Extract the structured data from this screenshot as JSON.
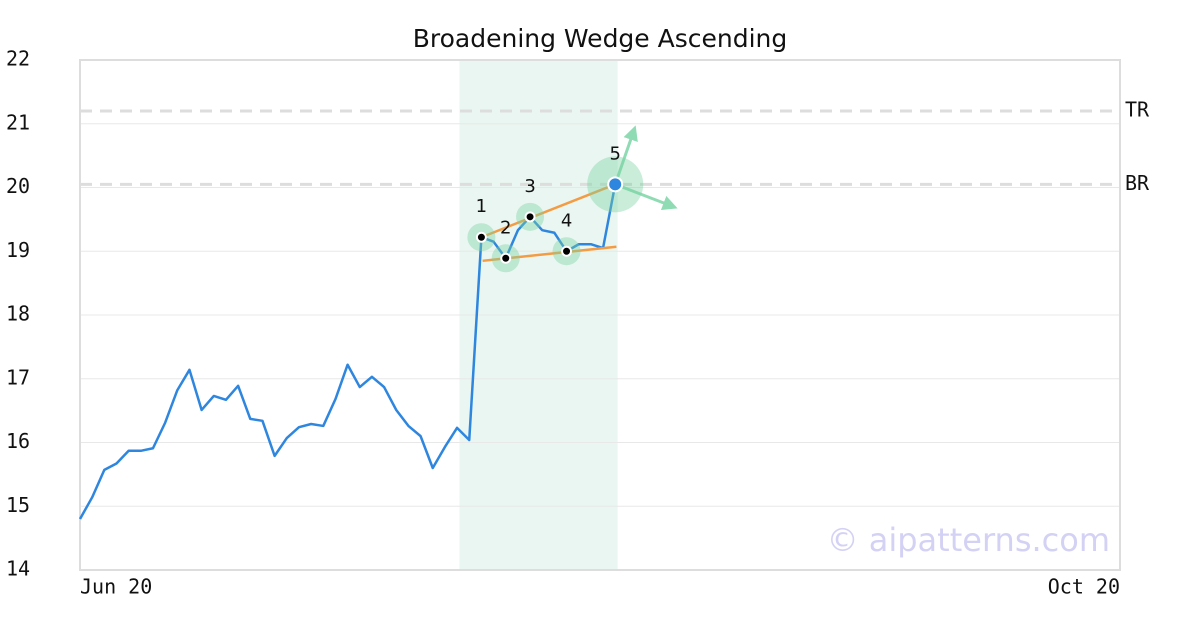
{
  "chart_data": {
    "type": "line",
    "title": "Broadening Wedge Ascending",
    "xlim": [
      0,
      85.5
    ],
    "xticks": [
      {
        "value": 0,
        "label": "Jun 20"
      },
      {
        "value": 85.5,
        "label": "Oct 20"
      }
    ],
    "ylim": [
      14,
      22
    ],
    "yticks": [
      14,
      15,
      16,
      17,
      18,
      19,
      20,
      21,
      22
    ],
    "grid": true,
    "series": [
      {
        "color": "#2e86de",
        "x": [
          0,
          1,
          2,
          3,
          4,
          5,
          6,
          7,
          8,
          9,
          10,
          11,
          12,
          13,
          14,
          15,
          16,
          17,
          18,
          19,
          20,
          21,
          22,
          23,
          24,
          25,
          26,
          27,
          28,
          29,
          30,
          31,
          32,
          33,
          34,
          35,
          36,
          37,
          38,
          39,
          40,
          41,
          42,
          43,
          44
        ],
        "values": [
          14.8,
          15.14,
          15.57,
          15.67,
          15.87,
          15.87,
          15.91,
          16.31,
          16.82,
          17.14,
          16.51,
          16.73,
          16.67,
          16.89,
          16.37,
          16.34,
          15.79,
          16.07,
          16.24,
          16.29,
          16.26,
          16.68,
          17.22,
          16.87,
          17.03,
          16.87,
          16.51,
          16.26,
          16.1,
          15.6,
          15.93,
          16.23,
          16.04,
          19.22,
          19.15,
          18.89,
          19.33,
          19.54,
          19.33,
          19.29,
          19.0,
          19.11,
          19.11,
          19.05,
          20.05
        ]
      }
    ],
    "highlight": [
      31.2,
      44.2
    ],
    "highlight_color": "#eaf6f1",
    "levels": [
      {
        "name": "TR",
        "value": 21.2
      },
      {
        "name": "BR",
        "value": 20.05
      }
    ],
    "pattern_points": [
      {
        "label": "1",
        "x": 33,
        "value": 19.22
      },
      {
        "label": "2",
        "x": 35,
        "value": 18.89
      },
      {
        "label": "3",
        "x": 37,
        "value": 19.54
      },
      {
        "label": "4",
        "x": 40,
        "value": 19.0
      },
      {
        "label": "5",
        "x": 44,
        "value": 20.05
      }
    ],
    "trendlines": [
      {
        "x": [
          33,
          44
        ],
        "values": [
          19.22,
          20.05
        ]
      },
      {
        "x": [
          33.1,
          44.1
        ],
        "values": [
          18.85,
          19.07
        ]
      }
    ],
    "trendline_color": "#f39c44",
    "arrows": [
      {
        "x": 45.6,
        "value": 20.93
      },
      {
        "x": 48.9,
        "value": 19.69
      }
    ],
    "watermark": "© aipatterns.com"
  }
}
